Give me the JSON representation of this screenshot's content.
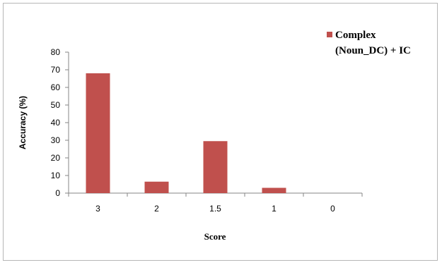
{
  "chart_data": {
    "type": "bar",
    "categories": [
      "3",
      "2",
      "1.5",
      "1",
      "0"
    ],
    "series": [
      {
        "name": "Complex (Noun_DC) + IC",
        "values": [
          68,
          6.5,
          29.5,
          3,
          0
        ],
        "color": "#C0504D"
      }
    ],
    "legend": {
      "lines": [
        "Complex",
        "(Noun_DC) + IC"
      ],
      "placement": "top-right"
    },
    "xlabel": "Score",
    "ylabel": "Accuracy (%)",
    "ylim": [
      0,
      80
    ],
    "yticks": [
      "0",
      "10",
      "20",
      "30",
      "40",
      "50",
      "60",
      "70",
      "80"
    ],
    "grid": false
  }
}
